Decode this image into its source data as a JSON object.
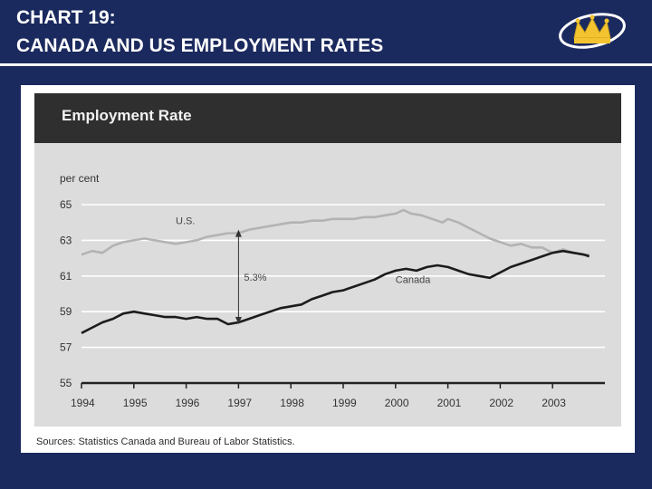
{
  "slide": {
    "title_line1": "CHART 19:",
    "title_line2": "CANADA AND US EMPLOYMENT RATES",
    "background_color": "#1b2a5e",
    "logo_icon": "crown-icon"
  },
  "source_note": "Sources: Statistics Canada and Bureau of Labor Statistics.",
  "chart_data": {
    "type": "line",
    "title": "Employment Rate",
    "ylabel": "per cent",
    "xlabel": "",
    "ylim": [
      55,
      65
    ],
    "yticks": [
      "65",
      "63",
      "61",
      "59",
      "57",
      "55"
    ],
    "xlim": [
      1994,
      2004
    ],
    "xticks": [
      "1994",
      "1995",
      "1996",
      "1997",
      "1998",
      "1999",
      "2000",
      "2001",
      "2002",
      "2003"
    ],
    "grid": true,
    "series": [
      {
        "name": "U.S.",
        "color": "#b3b3b3",
        "points": [
          [
            1994.0,
            62.2
          ],
          [
            1994.2,
            62.4
          ],
          [
            1994.4,
            62.3
          ],
          [
            1994.6,
            62.7
          ],
          [
            1994.8,
            62.9
          ],
          [
            1995.0,
            63.0
          ],
          [
            1995.2,
            63.1
          ],
          [
            1995.4,
            63.0
          ],
          [
            1995.6,
            62.9
          ],
          [
            1995.8,
            62.8
          ],
          [
            1996.0,
            62.9
          ],
          [
            1996.2,
            63.0
          ],
          [
            1996.4,
            63.2
          ],
          [
            1996.6,
            63.3
          ],
          [
            1996.8,
            63.4
          ],
          [
            1997.0,
            63.4
          ],
          [
            1997.2,
            63.6
          ],
          [
            1997.4,
            63.7
          ],
          [
            1997.6,
            63.8
          ],
          [
            1997.8,
            63.9
          ],
          [
            1998.0,
            64.0
          ],
          [
            1998.2,
            64.0
          ],
          [
            1998.4,
            64.1
          ],
          [
            1998.6,
            64.1
          ],
          [
            1998.8,
            64.2
          ],
          [
            1999.0,
            64.2
          ],
          [
            1999.2,
            64.2
          ],
          [
            1999.4,
            64.3
          ],
          [
            1999.6,
            64.3
          ],
          [
            1999.8,
            64.4
          ],
          [
            2000.0,
            64.5
          ],
          [
            2000.15,
            64.7
          ],
          [
            2000.3,
            64.5
          ],
          [
            2000.5,
            64.4
          ],
          [
            2000.7,
            64.2
          ],
          [
            2000.9,
            64.0
          ],
          [
            2001.0,
            64.2
          ],
          [
            2001.2,
            64.0
          ],
          [
            2001.4,
            63.7
          ],
          [
            2001.6,
            63.4
          ],
          [
            2001.8,
            63.1
          ],
          [
            2002.0,
            62.9
          ],
          [
            2002.2,
            62.7
          ],
          [
            2002.4,
            62.8
          ],
          [
            2002.6,
            62.6
          ],
          [
            2002.8,
            62.6
          ],
          [
            2003.0,
            62.3
          ],
          [
            2003.2,
            62.5
          ],
          [
            2003.4,
            62.3
          ],
          [
            2003.6,
            62.2
          ],
          [
            2003.7,
            62.2
          ]
        ]
      },
      {
        "name": "Canada",
        "color": "#1c1c1c",
        "points": [
          [
            1994.0,
            57.8
          ],
          [
            1994.2,
            58.1
          ],
          [
            1994.4,
            58.4
          ],
          [
            1994.6,
            58.6
          ],
          [
            1994.8,
            58.9
          ],
          [
            1995.0,
            59.0
          ],
          [
            1995.2,
            58.9
          ],
          [
            1995.4,
            58.8
          ],
          [
            1995.6,
            58.7
          ],
          [
            1995.8,
            58.7
          ],
          [
            1996.0,
            58.6
          ],
          [
            1996.2,
            58.7
          ],
          [
            1996.4,
            58.6
          ],
          [
            1996.6,
            58.6
          ],
          [
            1996.8,
            58.3
          ],
          [
            1997.0,
            58.4
          ],
          [
            1997.2,
            58.6
          ],
          [
            1997.4,
            58.8
          ],
          [
            1997.6,
            59.0
          ],
          [
            1997.8,
            59.2
          ],
          [
            1998.0,
            59.3
          ],
          [
            1998.2,
            59.4
          ],
          [
            1998.4,
            59.7
          ],
          [
            1998.6,
            59.9
          ],
          [
            1998.8,
            60.1
          ],
          [
            1999.0,
            60.2
          ],
          [
            1999.2,
            60.4
          ],
          [
            1999.4,
            60.6
          ],
          [
            1999.6,
            60.8
          ],
          [
            1999.8,
            61.1
          ],
          [
            2000.0,
            61.3
          ],
          [
            2000.2,
            61.4
          ],
          [
            2000.4,
            61.3
          ],
          [
            2000.6,
            61.5
          ],
          [
            2000.8,
            61.6
          ],
          [
            2001.0,
            61.5
          ],
          [
            2001.2,
            61.3
          ],
          [
            2001.4,
            61.1
          ],
          [
            2001.6,
            61.0
          ],
          [
            2001.8,
            60.9
          ],
          [
            2002.0,
            61.2
          ],
          [
            2002.2,
            61.5
          ],
          [
            2002.4,
            61.7
          ],
          [
            2002.6,
            61.9
          ],
          [
            2002.8,
            62.1
          ],
          [
            2003.0,
            62.3
          ],
          [
            2003.2,
            62.4
          ],
          [
            2003.4,
            62.3
          ],
          [
            2003.6,
            62.2
          ],
          [
            2003.7,
            62.1
          ]
        ]
      }
    ],
    "annotations": [
      {
        "text": "U.S.",
        "x": 1995.8,
        "y": 63.9,
        "series": "U.S."
      },
      {
        "text": "Canada",
        "x": 2000.0,
        "y": 60.6,
        "series": "Canada"
      },
      {
        "text": "5.3%",
        "type": "gap-arrow",
        "x": 1997.0,
        "y_from": 58.3,
        "y_to": 63.6
      }
    ]
  }
}
